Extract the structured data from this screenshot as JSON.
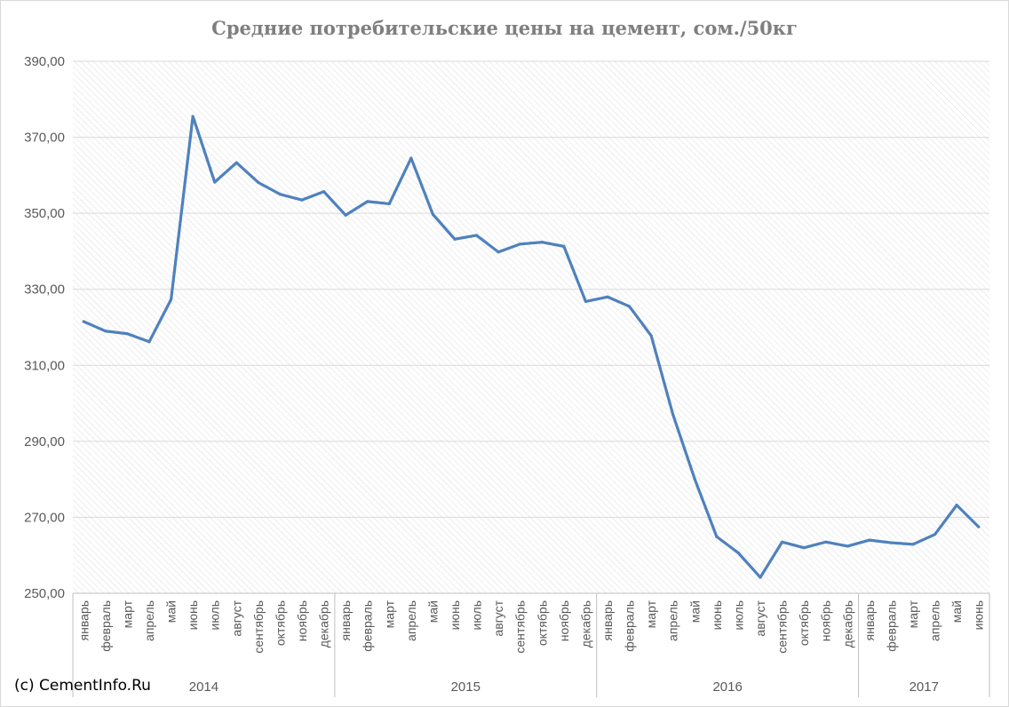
{
  "chart_data": {
    "type": "line",
    "title": "Средние потребительские цены на цемент, сом./50кг",
    "ylim": [
      250,
      390
    ],
    "yticks": [
      "250,00",
      "270,00",
      "290,00",
      "310,00",
      "330,00",
      "350,00",
      "370,00",
      "390,00"
    ],
    "ytick_values": [
      250,
      270,
      290,
      310,
      330,
      350,
      370,
      390
    ],
    "grid": true,
    "legend": "none",
    "years": [
      {
        "label": "2014",
        "months": [
          "январь",
          "февраль",
          "март",
          "апрель",
          "май",
          "июнь",
          "июль",
          "август",
          "сентябрь",
          "октябрь",
          "ноябрь",
          "декабрь"
        ]
      },
      {
        "label": "2015",
        "months": [
          "январь",
          "февраль",
          "март",
          "апрель",
          "май",
          "июнь",
          "июль",
          "август",
          "сентябрь",
          "октябрь",
          "ноябрь",
          "декабрь"
        ]
      },
      {
        "label": "2016",
        "months": [
          "январь",
          "февраль",
          "март",
          "апрель",
          "май",
          "июнь",
          "июль",
          "август",
          "сентябрь",
          "октябрь",
          "ноябрь",
          "декабрь"
        ]
      },
      {
        "label": "2017",
        "months": [
          "январь",
          "февраль",
          "март",
          "апрель",
          "май",
          "июнь"
        ]
      }
    ],
    "series": [
      {
        "color": "#4f81bd",
        "values": [
          321.5,
          319.0,
          318.3,
          316.2,
          327.3,
          375.5,
          358.2,
          363.3,
          358.1,
          355.0,
          353.5,
          355.7,
          349.5,
          353.1,
          352.5,
          364.5,
          349.7,
          343.2,
          344.2,
          339.8,
          341.9,
          342.4,
          341.3,
          326.8,
          328.0,
          325.5,
          317.8,
          297.0,
          280.0,
          264.9,
          260.6,
          254.2,
          263.5,
          262.0,
          263.5,
          262.4,
          264.0,
          263.3,
          262.9,
          265.5,
          273.2,
          267.5
        ]
      }
    ]
  },
  "footer": {
    "credit": "(c) CementInfo.Ru"
  },
  "colors": {
    "line": "#4f81bd",
    "grid": "#d9d9d9",
    "hatch": "#dcdcdc",
    "axis_text": "#595959"
  }
}
